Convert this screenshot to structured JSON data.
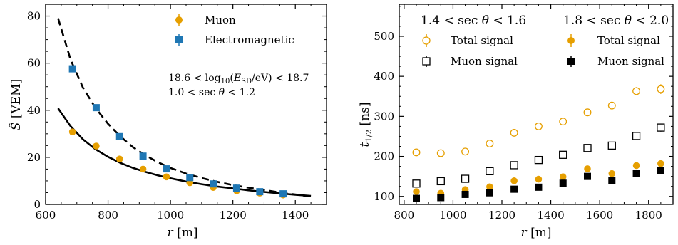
{
  "chart_data": [
    {
      "type": "scatter",
      "xlabel": "r [m]",
      "ylabel": "Ŝ [VEM]",
      "xlim": [
        600,
        1500
      ],
      "ylim": [
        0,
        85
      ],
      "xticks": [
        600,
        800,
        1000,
        1200,
        1400
      ],
      "yticks": [
        0,
        20,
        40,
        60,
        80
      ],
      "grid": false,
      "legend_position": "top-right",
      "annotation_lines": [
        "18.6 < log10(E_SD/eV) < 18.7",
        "1.0 < sec θ < 1.2"
      ],
      "series": [
        {
          "name": "Muon",
          "marker": "circle",
          "color": "#E69F00",
          "x": [
            686,
            762,
            837,
            912,
            987,
            1062,
            1137,
            1212,
            1286,
            1361
          ],
          "y": [
            30.8,
            24.8,
            19.3,
            15.0,
            11.7,
            9.2,
            7.2,
            5.8,
            4.8,
            4.0
          ]
        },
        {
          "name": "Electromagnetic",
          "marker": "square",
          "color": "#1F77B4",
          "x": [
            686,
            762,
            837,
            912,
            987,
            1062,
            1137,
            1212,
            1286,
            1361
          ],
          "y": [
            57.6,
            41.1,
            28.8,
            20.5,
            15.1,
            11.4,
            8.7,
            6.9,
            5.4,
            4.5
          ]
        }
      ],
      "curves": [
        {
          "style": "solid",
          "x": [
            640,
            680,
            720,
            760,
            800,
            840,
            880,
            920,
            960,
            1000,
            1050,
            1100,
            1150,
            1200,
            1250,
            1300,
            1350,
            1400,
            1450
          ],
          "y": [
            40.8,
            33.2,
            27.6,
            23.4,
            20.2,
            17.6,
            15.5,
            13.8,
            12.3,
            11.1,
            9.7,
            8.6,
            7.6,
            6.8,
            6.0,
            5.3,
            4.7,
            4.1,
            3.6
          ]
        },
        {
          "style": "dashed",
          "x": [
            640,
            680,
            720,
            760,
            800,
            840,
            880,
            920,
            960,
            1000,
            1050,
            1100,
            1150,
            1200,
            1250,
            1300,
            1350,
            1400,
            1450
          ],
          "y": [
            79.0,
            61.5,
            49.5,
            41.0,
            34.2,
            28.8,
            24.3,
            20.8,
            17.9,
            15.5,
            13.1,
            11.2,
            9.6,
            8.2,
            7.1,
            6.1,
            5.1,
            4.2,
            3.4
          ]
        }
      ]
    },
    {
      "type": "scatter",
      "xlabel": "r [m]",
      "ylabel": "t1/2 [ns]",
      "xlim": [
        780,
        1900
      ],
      "ylim": [
        80,
        580
      ],
      "xticks": [
        800,
        1000,
        1200,
        1400,
        1600,
        1800
      ],
      "yticks": [
        100,
        200,
        300,
        400,
        500
      ],
      "grid": false,
      "legend_position": "top",
      "group_headers": [
        "1.4 < sec θ < 1.6",
        "1.8 < sec θ < 2.0"
      ],
      "x_values": [
        850,
        950,
        1050,
        1150,
        1250,
        1350,
        1450,
        1550,
        1650,
        1750,
        1850
      ],
      "series": [
        {
          "name": "Total signal",
          "group": "1.4 < sec θ < 1.6",
          "marker": "open-circle",
          "color": "#E69F00",
          "y": [
            210,
            208,
            212,
            232,
            259,
            275,
            287,
            310,
            327,
            363,
            368
          ],
          "yerr": [
            0,
            0,
            0,
            0,
            0,
            0,
            0,
            0,
            0,
            10,
            12
          ]
        },
        {
          "name": "Muon signal",
          "group": "1.4 < sec θ < 1.6",
          "marker": "open-square",
          "color": "#000000",
          "y": [
            132,
            138,
            144,
            163,
            178,
            191,
            204,
            221,
            227,
            251,
            272
          ],
          "yerr": [
            0,
            0,
            0,
            0,
            0,
            0,
            0,
            0,
            0,
            0,
            10
          ]
        },
        {
          "name": "Total signal",
          "group": "1.8 < sec θ < 2.0",
          "marker": "filled-circle",
          "color": "#E69F00",
          "y": [
            112,
            108,
            117,
            124,
            139,
            143,
            149,
            169,
            157,
            177,
            182
          ],
          "yerr": [
            0,
            0,
            0,
            0,
            0,
            0,
            0,
            0,
            0,
            0,
            0
          ]
        },
        {
          "name": "Muon signal",
          "group": "1.8 < sec θ < 2.0",
          "marker": "filled-square",
          "color": "#000000",
          "y": [
            95,
            97,
            105,
            109,
            118,
            123,
            133,
            150,
            140,
            158,
            164
          ],
          "yerr": [
            0,
            0,
            0,
            0,
            0,
            0,
            0,
            0,
            0,
            0,
            0
          ]
        }
      ]
    }
  ]
}
